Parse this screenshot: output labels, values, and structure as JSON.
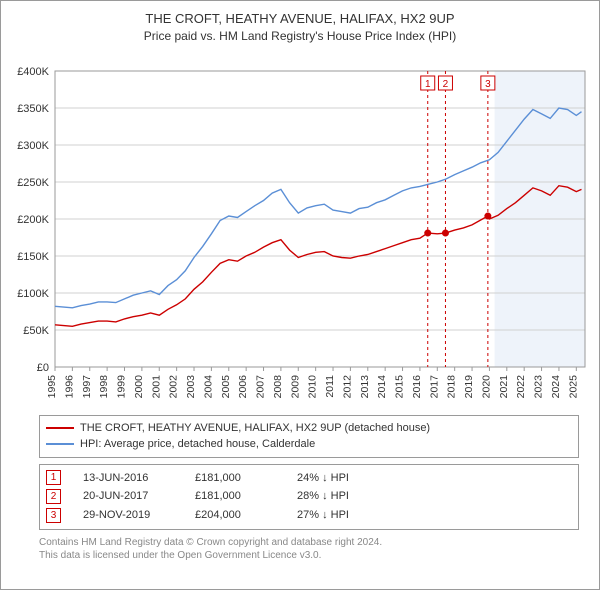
{
  "title": "THE CROFT, HEATHY AVENUE, HALIFAX, HX2 9UP",
  "subtitle": "Price paid vs. HM Land Registry's House Price Index (HPI)",
  "chart": {
    "type": "line",
    "background_color": "#ffffff",
    "grid_color": "#d0d0d0",
    "axis_color": "#9a9a9a",
    "dash_color": "#cc0000",
    "shade_color": "#eef3fa",
    "label_fontsize": 11,
    "xlim": [
      1995,
      2025.5
    ],
    "ylim": [
      0,
      400000
    ],
    "ytick_step": 50000,
    "ytick_labels": [
      "£0",
      "£50K",
      "£100K",
      "£150K",
      "£200K",
      "£250K",
      "£300K",
      "£350K",
      "£400K"
    ],
    "xtick_step": 1,
    "xticks": [
      1995,
      1996,
      1997,
      1998,
      1999,
      2000,
      2001,
      2002,
      2003,
      2004,
      2005,
      2006,
      2007,
      2008,
      2009,
      2010,
      2011,
      2012,
      2013,
      2014,
      2015,
      2016,
      2017,
      2018,
      2019,
      2020,
      2021,
      2022,
      2023,
      2024,
      2025
    ],
    "shade_range": [
      2020.3,
      2025.5
    ],
    "series": [
      {
        "id": "hpi",
        "label": "HPI: Average price, detached house, Calderdale",
        "color": "#5b8fd6",
        "line_width": 1.4,
        "data": [
          [
            1995,
            82000
          ],
          [
            1995.5,
            81000
          ],
          [
            1996,
            80000
          ],
          [
            1996.5,
            83000
          ],
          [
            1997,
            85000
          ],
          [
            1997.5,
            88000
          ],
          [
            1998,
            88000
          ],
          [
            1998.5,
            87000
          ],
          [
            1999,
            92000
          ],
          [
            1999.5,
            97000
          ],
          [
            2000,
            100000
          ],
          [
            2000.5,
            103000
          ],
          [
            2001,
            98000
          ],
          [
            2001.5,
            110000
          ],
          [
            2002,
            118000
          ],
          [
            2002.5,
            130000
          ],
          [
            2003,
            148000
          ],
          [
            2003.5,
            163000
          ],
          [
            2004,
            180000
          ],
          [
            2004.5,
            198000
          ],
          [
            2005,
            204000
          ],
          [
            2005.5,
            202000
          ],
          [
            2006,
            210000
          ],
          [
            2006.5,
            218000
          ],
          [
            2007,
            225000
          ],
          [
            2007.5,
            235000
          ],
          [
            2008,
            240000
          ],
          [
            2008.5,
            222000
          ],
          [
            2009,
            208000
          ],
          [
            2009.5,
            215000
          ],
          [
            2010,
            218000
          ],
          [
            2010.5,
            220000
          ],
          [
            2011,
            212000
          ],
          [
            2011.5,
            210000
          ],
          [
            2012,
            208000
          ],
          [
            2012.5,
            214000
          ],
          [
            2013,
            216000
          ],
          [
            2013.5,
            222000
          ],
          [
            2014,
            226000
          ],
          [
            2014.5,
            232000
          ],
          [
            2015,
            238000
          ],
          [
            2015.5,
            242000
          ],
          [
            2016,
            244000
          ],
          [
            2016.5,
            247000
          ],
          [
            2017,
            250000
          ],
          [
            2017.5,
            254000
          ],
          [
            2018,
            260000
          ],
          [
            2018.5,
            265000
          ],
          [
            2019,
            270000
          ],
          [
            2019.5,
            276000
          ],
          [
            2020,
            280000
          ],
          [
            2020.5,
            290000
          ],
          [
            2021,
            305000
          ],
          [
            2021.5,
            320000
          ],
          [
            2022,
            335000
          ],
          [
            2022.5,
            348000
          ],
          [
            2023,
            342000
          ],
          [
            2023.5,
            336000
          ],
          [
            2024,
            350000
          ],
          [
            2024.5,
            348000
          ],
          [
            2025,
            340000
          ],
          [
            2025.3,
            345000
          ]
        ]
      },
      {
        "id": "price_paid",
        "label": "THE CROFT, HEATHY AVENUE, HALIFAX, HX2 9UP (detached house)",
        "color": "#cc0000",
        "line_width": 1.4,
        "data": [
          [
            1995,
            57000
          ],
          [
            1995.5,
            56000
          ],
          [
            1996,
            55000
          ],
          [
            1996.5,
            58000
          ],
          [
            1997,
            60000
          ],
          [
            1997.5,
            62000
          ],
          [
            1998,
            62000
          ],
          [
            1998.5,
            61000
          ],
          [
            1999,
            65000
          ],
          [
            1999.5,
            68000
          ],
          [
            2000,
            70000
          ],
          [
            2000.5,
            73000
          ],
          [
            2001,
            70000
          ],
          [
            2001.5,
            78000
          ],
          [
            2002,
            84000
          ],
          [
            2002.5,
            92000
          ],
          [
            2003,
            105000
          ],
          [
            2003.5,
            115000
          ],
          [
            2004,
            128000
          ],
          [
            2004.5,
            140000
          ],
          [
            2005,
            145000
          ],
          [
            2005.5,
            143000
          ],
          [
            2006,
            150000
          ],
          [
            2006.5,
            155000
          ],
          [
            2007,
            162000
          ],
          [
            2007.5,
            168000
          ],
          [
            2008,
            172000
          ],
          [
            2008.5,
            158000
          ],
          [
            2009,
            148000
          ],
          [
            2009.5,
            152000
          ],
          [
            2010,
            155000
          ],
          [
            2010.5,
            156000
          ],
          [
            2011,
            150000
          ],
          [
            2011.5,
            148000
          ],
          [
            2012,
            147000
          ],
          [
            2012.5,
            150000
          ],
          [
            2013,
            152000
          ],
          [
            2013.5,
            156000
          ],
          [
            2014,
            160000
          ],
          [
            2014.5,
            164000
          ],
          [
            2015,
            168000
          ],
          [
            2015.5,
            172000
          ],
          [
            2016,
            174000
          ],
          [
            2016.45,
            181000
          ],
          [
            2017,
            180000
          ],
          [
            2017.47,
            181000
          ],
          [
            2018,
            185000
          ],
          [
            2018.5,
            188000
          ],
          [
            2019,
            192000
          ],
          [
            2019.91,
            204000
          ],
          [
            2020,
            200000
          ],
          [
            2020.5,
            205000
          ],
          [
            2021,
            214000
          ],
          [
            2021.5,
            222000
          ],
          [
            2022,
            232000
          ],
          [
            2022.5,
            242000
          ],
          [
            2023,
            238000
          ],
          [
            2023.5,
            232000
          ],
          [
            2024,
            245000
          ],
          [
            2024.5,
            243000
          ],
          [
            2025,
            237000
          ],
          [
            2025.3,
            240000
          ]
        ]
      }
    ],
    "sale_markers": [
      {
        "num": "1",
        "x": 2016.45,
        "y": 181000
      },
      {
        "num": "2",
        "x": 2017.47,
        "y": 181000
      },
      {
        "num": "3",
        "x": 2019.91,
        "y": 204000
      }
    ]
  },
  "legend": [
    {
      "color": "#cc0000",
      "label": "THE CROFT, HEATHY AVENUE, HALIFAX, HX2 9UP (detached house)"
    },
    {
      "color": "#5b8fd6",
      "label": "HPI: Average price, detached house, Calderdale"
    }
  ],
  "sales": [
    {
      "num": "1",
      "date": "13-JUN-2016",
      "price": "£181,000",
      "hpi": "24% ↓ HPI"
    },
    {
      "num": "2",
      "date": "20-JUN-2017",
      "price": "£181,000",
      "hpi": "28% ↓ HPI"
    },
    {
      "num": "3",
      "date": "29-NOV-2019",
      "price": "£204,000",
      "hpi": "27% ↓ HPI"
    }
  ],
  "footnote_line1": "Contains HM Land Registry data © Crown copyright and database right 2024.",
  "footnote_line2": "This data is licensed under the Open Government Licence v3.0."
}
